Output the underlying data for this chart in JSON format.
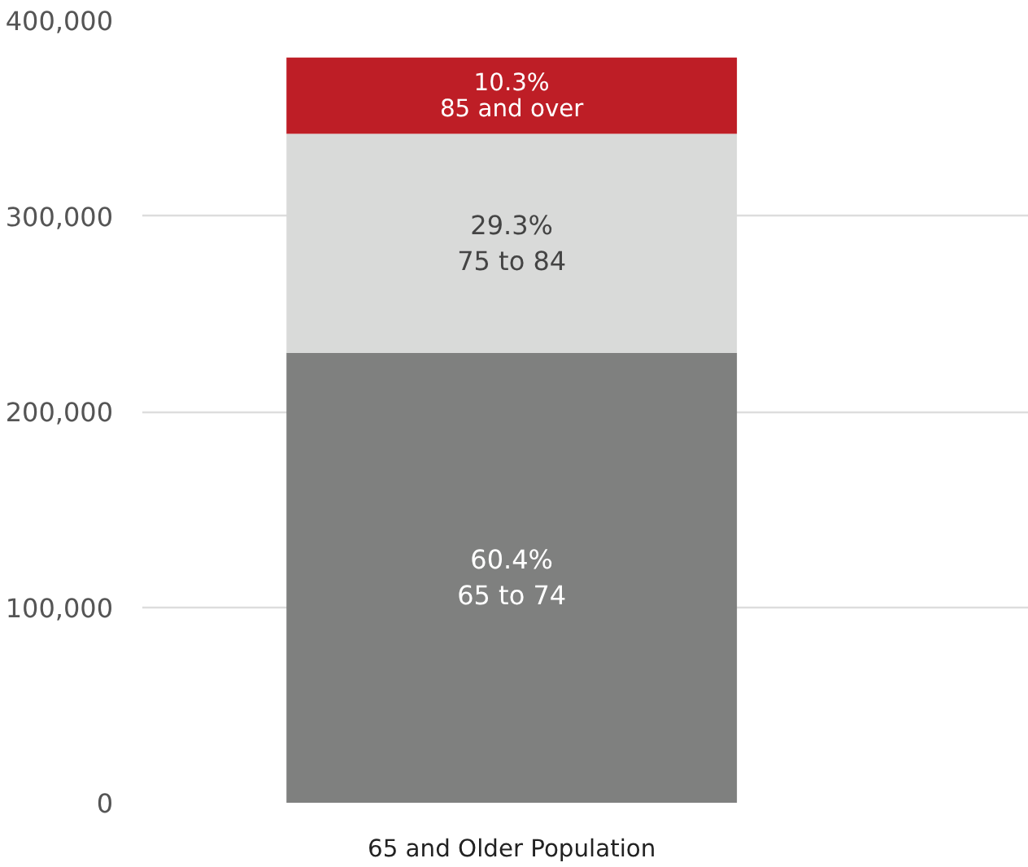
{
  "chart_data": {
    "type": "bar",
    "stacked": true,
    "categories": [
      "65 and Older Population"
    ],
    "series": [
      {
        "name": "65 to 74",
        "color": "#7f807f",
        "values": [
          230000
        ]
      },
      {
        "name": "75 to 84",
        "color": "#d9dad9",
        "values": [
          112000
        ]
      },
      {
        "name": "85 and over",
        "color": "#be1e26",
        "values": [
          39000
        ]
      }
    ],
    "annotations": [
      "60.4%",
      "29.3%",
      "10.3%"
    ],
    "ylim": [
      0,
      400000
    ],
    "yticks": [
      0,
      {
        "value": 100000,
        "label": "100,000"
      },
      {
        "value": 200000,
        "label": "200,000"
      },
      {
        "value": 300000,
        "label": "300,000"
      },
      {
        "value": 400000,
        "label": "400,000"
      }
    ],
    "grid": "y",
    "legend": false
  }
}
